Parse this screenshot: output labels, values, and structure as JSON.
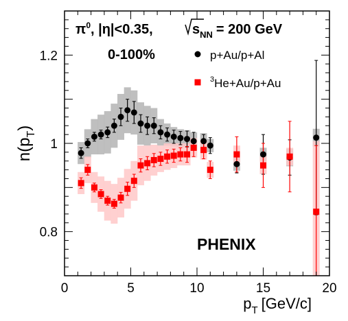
{
  "chart_data": {
    "type": "scatter",
    "header": {
      "particle": "π",
      "particle_sup": "0",
      "eta_cut": ", |η|<0.35,",
      "energy_sym": "s",
      "energy_sub": "NN",
      "energy_val": "= 200 GeV",
      "centrality": "0-100%"
    },
    "watermark": "PHENIX",
    "xlabel": "p",
    "xlabel_sub": "T",
    "xlabel_unit": "[GeV/c]",
    "ylabel": "n(p",
    "ylabel_sub": "T",
    "ylabel_close": ")",
    "xlim": [
      0,
      20
    ],
    "ylim": [
      0.7,
      1.3
    ],
    "xticks": [
      "0",
      "5",
      "10",
      "15",
      "20"
    ],
    "yticks": [
      "0.8",
      "1",
      "1.2"
    ],
    "series": [
      {
        "name": "p+Au/p+Al",
        "color": "#000000",
        "band_color": "#b4b4b4",
        "marker": "circle",
        "points": [
          {
            "x": 1.25,
            "y": 0.978,
            "err": 0.012,
            "sys": 0.025
          },
          {
            "x": 1.75,
            "y": 1.0,
            "err": 0.01,
            "sys": 0.032
          },
          {
            "x": 2.25,
            "y": 1.015,
            "err": 0.01,
            "sys": 0.04
          },
          {
            "x": 2.75,
            "y": 1.02,
            "err": 0.01,
            "sys": 0.045
          },
          {
            "x": 3.25,
            "y": 1.025,
            "err": 0.012,
            "sys": 0.048
          },
          {
            "x": 3.75,
            "y": 1.04,
            "err": 0.015,
            "sys": 0.05
          },
          {
            "x": 4.25,
            "y": 1.06,
            "err": 0.02,
            "sys": 0.052
          },
          {
            "x": 4.75,
            "y": 1.075,
            "err": 0.025,
            "sys": 0.052
          },
          {
            "x": 5.25,
            "y": 1.07,
            "err": 0.025,
            "sys": 0.05
          },
          {
            "x": 5.75,
            "y": 1.045,
            "err": 0.02,
            "sys": 0.048
          },
          {
            "x": 6.25,
            "y": 1.04,
            "err": 0.02,
            "sys": 0.045
          },
          {
            "x": 6.75,
            "y": 1.04,
            "err": 0.018,
            "sys": 0.04
          },
          {
            "x": 7.25,
            "y": 1.025,
            "err": 0.015,
            "sys": 0.03
          },
          {
            "x": 7.75,
            "y": 1.02,
            "err": 0.015,
            "sys": 0.025
          },
          {
            "x": 8.25,
            "y": 1.015,
            "err": 0.015,
            "sys": 0.022
          },
          {
            "x": 8.75,
            "y": 1.012,
            "err": 0.015,
            "sys": 0.02
          },
          {
            "x": 9.25,
            "y": 1.01,
            "err": 0.018,
            "sys": 0.02
          },
          {
            "x": 9.75,
            "y": 1.005,
            "err": 0.02,
            "sys": 0.02
          },
          {
            "x": 10.5,
            "y": 1.005,
            "err": 0.015,
            "sys": 0.018
          },
          {
            "x": 11,
            "y": 0.995,
            "err": 0.018,
            "sys": 0.015
          },
          {
            "x": 13,
            "y": 0.953,
            "err": 0.02,
            "sys": 0.015
          },
          {
            "x": 15,
            "y": 0.975,
            "err": 0.045,
            "sys": 0.015
          },
          {
            "x": 17,
            "y": 0.968,
            "err": 0.04,
            "sys": 0.02
          },
          {
            "x": 19,
            "y": 1.013,
            "err": 0.175,
            "sys": 0.02
          }
        ]
      },
      {
        "name": "He+Au/p+Au",
        "name_sup": "3",
        "color": "#ff0000",
        "band_color": "#ffc8c8",
        "marker": "square",
        "points": [
          {
            "x": 1.25,
            "y": 0.91,
            "err": 0.012,
            "sys": 0.025
          },
          {
            "x": 1.75,
            "y": 0.94,
            "err": 0.012,
            "sys": 0.03
          },
          {
            "x": 2.25,
            "y": 0.9,
            "err": 0.01,
            "sys": 0.035
          },
          {
            "x": 2.75,
            "y": 0.885,
            "err": 0.01,
            "sys": 0.04
          },
          {
            "x": 3.25,
            "y": 0.87,
            "err": 0.01,
            "sys": 0.045
          },
          {
            "x": 3.75,
            "y": 0.863,
            "err": 0.01,
            "sys": 0.045
          },
          {
            "x": 4.25,
            "y": 0.877,
            "err": 0.012,
            "sys": 0.045
          },
          {
            "x": 4.75,
            "y": 0.897,
            "err": 0.015,
            "sys": 0.045
          },
          {
            "x": 5.25,
            "y": 0.915,
            "err": 0.015,
            "sys": 0.045
          },
          {
            "x": 5.75,
            "y": 0.95,
            "err": 0.015,
            "sys": 0.045
          },
          {
            "x": 6.25,
            "y": 0.955,
            "err": 0.015,
            "sys": 0.04
          },
          {
            "x": 6.75,
            "y": 0.962,
            "err": 0.015,
            "sys": 0.035
          },
          {
            "x": 7.25,
            "y": 0.965,
            "err": 0.015,
            "sys": 0.03
          },
          {
            "x": 7.75,
            "y": 0.97,
            "err": 0.015,
            "sys": 0.03
          },
          {
            "x": 8.25,
            "y": 0.972,
            "err": 0.015,
            "sys": 0.028
          },
          {
            "x": 8.75,
            "y": 0.975,
            "err": 0.015,
            "sys": 0.025
          },
          {
            "x": 9.25,
            "y": 0.975,
            "err": 0.018,
            "sys": 0.025
          },
          {
            "x": 9.75,
            "y": 0.99,
            "err": 0.02,
            "sys": 0.022
          },
          {
            "x": 10.5,
            "y": 0.985,
            "err": 0.02,
            "sys": 0.022
          },
          {
            "x": 11,
            "y": 0.94,
            "err": 0.02,
            "sys": 0.018
          },
          {
            "x": 13,
            "y": 0.975,
            "err": 0.04,
            "sys": 0.02
          },
          {
            "x": 15,
            "y": 0.95,
            "err": 0.05,
            "sys": 0.02
          },
          {
            "x": 17,
            "y": 0.97,
            "err": 0.08,
            "sys": 0.02
          },
          {
            "x": 19,
            "y": 0.845,
            "err": 0.15,
            "sys": 0.16
          }
        ]
      }
    ],
    "legend_position": "top-right",
    "grid": false
  }
}
